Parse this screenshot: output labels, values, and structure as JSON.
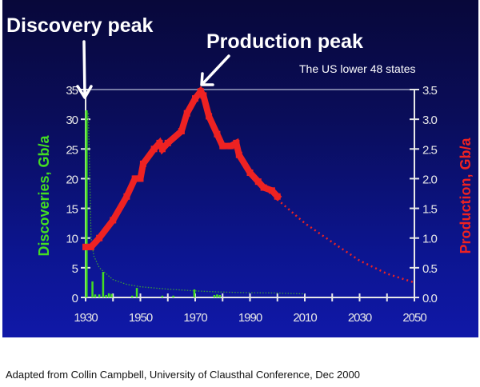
{
  "annotations": {
    "discovery_peak": "Discovery peak",
    "production_peak": "Production peak",
    "region": "The US lower 48 states"
  },
  "caption": "Adapted from Collin Campbell, University of Clausthal Conference, Dec 2000",
  "colors": {
    "production": "#ee2222",
    "discoveries": "#44dd22",
    "axis": "#e8e8e8",
    "background_top": "#08083a",
    "background_bottom": "#1018a8"
  },
  "chart_data": {
    "type": "bar+line",
    "title": "",
    "xlabel": "",
    "ylabel_left": "Discoveries, Gb/a",
    "ylabel_right": "Production, Gb/a",
    "xlim": [
      1930,
      2050
    ],
    "ylim_left": [
      0,
      35
    ],
    "ylim_right": [
      0,
      3.5
    ],
    "x_ticks": [
      "1930",
      "1950",
      "1970",
      "1990",
      "2010",
      "2030",
      "2050"
    ],
    "y_ticks_left": [
      "0",
      "5",
      "10",
      "15",
      "20",
      "25",
      "30",
      "35"
    ],
    "y_ticks_right": [
      "0.0",
      "0.5",
      "1.0",
      "1.5",
      "2.0",
      "2.5",
      "3.0",
      "3.5"
    ],
    "grid": false,
    "series": [
      {
        "name": "Discoveries, Gb/a",
        "axis": "left",
        "type": "bar",
        "x": [
          1930.3,
          1932.5,
          1933.5,
          1935,
          1936.4,
          1937.5,
          1938.5,
          1939.5,
          1947,
          1948.7,
          1958,
          1962,
          1969.7,
          1977,
          1978,
          1979
        ],
        "values": [
          31.5,
          2.7,
          0.5,
          0.5,
          4.3,
          0.4,
          0.7,
          0.6,
          0.3,
          1.6,
          0.3,
          0.3,
          1.35,
          0.4,
          0.5,
          0.4
        ]
      },
      {
        "name": "",
        "axis": "left",
        "type": "line-dotted",
        "x": [
          1931,
          1932,
          1933,
          1935,
          1940,
          1945,
          1950,
          1960,
          1970,
          1980,
          1990,
          2000,
          2010
        ],
        "values": [
          31,
          10,
          7,
          5,
          3,
          2.2,
          1.8,
          1.4,
          1.1,
          0.9,
          0.8,
          0.75,
          0.6
        ]
      },
      {
        "name": "Production, Gb/a",
        "axis": "right",
        "type": "line",
        "x": [
          1930,
          1932,
          1935,
          1940,
          1945,
          1948,
          1950,
          1951,
          1955,
          1957,
          1958,
          1960,
          1965,
          1967,
          1970,
          1972,
          1973,
          1975,
          1978,
          1980,
          1983,
          1985,
          1986,
          1990,
          1993,
          1995,
          1998,
          2000
        ],
        "values": [
          0.85,
          0.85,
          1.0,
          1.3,
          1.7,
          2.0,
          2.0,
          2.25,
          2.5,
          2.6,
          2.5,
          2.6,
          2.8,
          3.1,
          3.35,
          3.47,
          3.4,
          3.05,
          2.75,
          2.55,
          2.55,
          2.6,
          2.4,
          2.1,
          1.95,
          1.85,
          1.8,
          1.7
        ]
      },
      {
        "name": "",
        "axis": "right",
        "type": "line-dotted",
        "x": [
          2000,
          2010,
          2020,
          2030,
          2040,
          2050
        ],
        "values": [
          1.65,
          1.25,
          0.93,
          0.62,
          0.4,
          0.25
        ]
      }
    ]
  }
}
